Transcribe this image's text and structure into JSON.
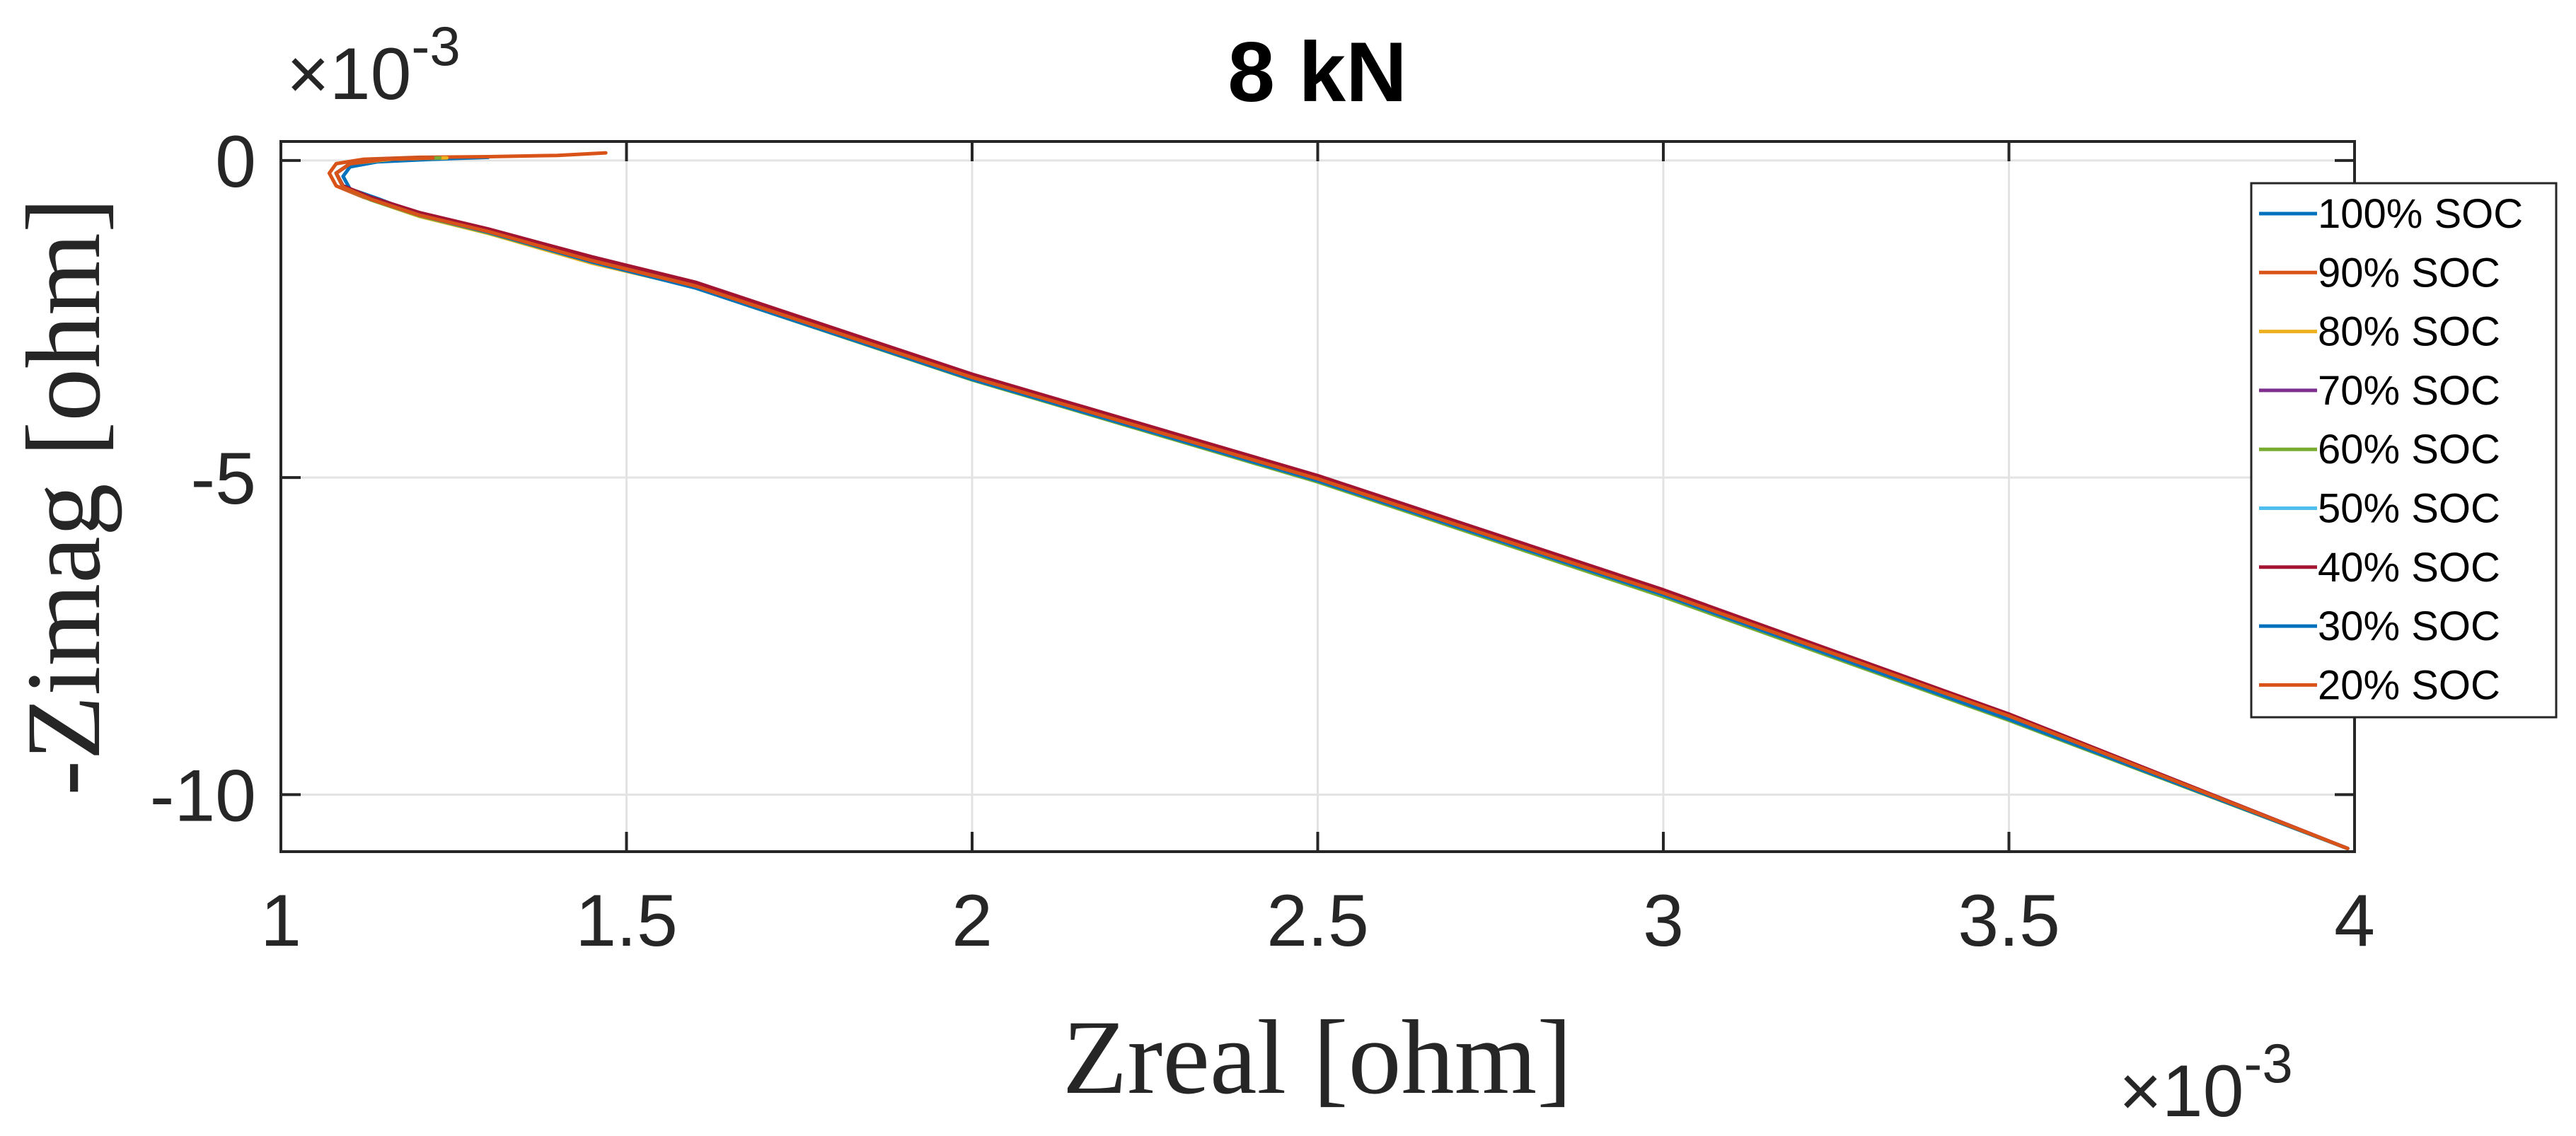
{
  "chart_data": {
    "type": "line",
    "title": "8 kN",
    "xlabel": "Zreal [ohm]",
    "ylabel": "-Zimag [ohm]",
    "x_exponent_label": "×10-3",
    "y_exponent_label": "×10-3",
    "xlim": [
      1,
      4
    ],
    "ylim": [
      -10.9,
      0.3
    ],
    "x_ticks": [
      1,
      1.5,
      2,
      2.5,
      3,
      3.5,
      4
    ],
    "x_tick_labels": [
      "1",
      "1.5",
      "2",
      "2.5",
      "3",
      "3.5",
      "4"
    ],
    "y_ticks": [
      0,
      -5,
      -10
    ],
    "y_tick_labels": [
      "0",
      "-5",
      "-10"
    ],
    "grid": true,
    "legend_position": "top-right",
    "series": [
      {
        "name": "100% SOC",
        "color": "#0072BD",
        "x": [
          1.3,
          1.22,
          1.14,
          1.1,
          1.09,
          1.1,
          1.14,
          1.2,
          1.28,
          1.4,
          1.6,
          2.0,
          2.5,
          3.0,
          3.5,
          3.99
        ],
        "y": [
          0.05,
          0.02,
          -0.02,
          -0.1,
          -0.25,
          -0.45,
          -0.6,
          -0.85,
          -1.05,
          -1.45,
          -2.0,
          -3.45,
          -5.05,
          -6.85,
          -8.8,
          -10.85
        ]
      },
      {
        "name": "90% SOC",
        "color": "#D95319",
        "x": [
          1.47,
          1.4,
          1.3,
          1.2,
          1.12,
          1.08,
          1.07,
          1.08,
          1.12,
          1.18,
          1.26,
          1.4,
          1.6,
          2.0,
          2.5,
          3.0,
          3.5,
          3.99
        ],
        "y": [
          0.12,
          0.08,
          0.06,
          0.05,
          0.02,
          -0.05,
          -0.2,
          -0.4,
          -0.58,
          -0.8,
          -1.02,
          -1.4,
          -1.95,
          -3.4,
          -5.0,
          -6.8,
          -8.75,
          -10.85
        ]
      },
      {
        "name": "80% SOC",
        "color": "#EDB120",
        "x": [
          1.24,
          1.16,
          1.1,
          1.08,
          1.09,
          1.13,
          1.2,
          1.3,
          1.45,
          1.6,
          2.0,
          2.5,
          3.0,
          3.5,
          3.99
        ],
        "y": [
          0.04,
          0.02,
          -0.05,
          -0.2,
          -0.42,
          -0.62,
          -0.88,
          -1.15,
          -1.62,
          -2.0,
          -3.45,
          -5.05,
          -6.85,
          -8.8,
          -10.85
        ]
      },
      {
        "name": "70% SOC",
        "color": "#7E2F8E",
        "x": [
          1.23,
          1.15,
          1.1,
          1.08,
          1.09,
          1.13,
          1.2,
          1.3,
          1.45,
          1.6,
          2.0,
          2.5,
          3.0,
          3.5,
          3.99
        ],
        "y": [
          0.04,
          0.02,
          -0.05,
          -0.2,
          -0.42,
          -0.6,
          -0.85,
          -1.12,
          -1.58,
          -1.98,
          -3.43,
          -5.03,
          -6.83,
          -8.78,
          -10.85
        ]
      },
      {
        "name": "60% SOC",
        "color": "#77AC30",
        "x": [
          1.23,
          1.15,
          1.1,
          1.08,
          1.09,
          1.13,
          1.2,
          1.3,
          1.45,
          1.6,
          2.0,
          2.5,
          3.0,
          3.5,
          3.99
        ],
        "y": [
          0.04,
          0.02,
          -0.05,
          -0.2,
          -0.42,
          -0.62,
          -0.87,
          -1.14,
          -1.6,
          -2.01,
          -3.46,
          -5.07,
          -6.88,
          -8.83,
          -10.85
        ]
      },
      {
        "name": "50% SOC",
        "color": "#4DBEEE",
        "x": [
          1.22,
          1.15,
          1.1,
          1.08,
          1.09,
          1.13,
          1.2,
          1.3,
          1.45,
          1.6,
          2.0,
          2.5,
          3.0,
          3.5,
          3.99
        ],
        "y": [
          0.04,
          0.02,
          -0.05,
          -0.2,
          -0.42,
          -0.61,
          -0.86,
          -1.13,
          -1.59,
          -2.0,
          -3.44,
          -5.04,
          -6.84,
          -8.8,
          -10.85
        ]
      },
      {
        "name": "40% SOC",
        "color": "#A2142F",
        "x": [
          1.22,
          1.15,
          1.1,
          1.08,
          1.09,
          1.13,
          1.2,
          1.3,
          1.45,
          1.6,
          2.0,
          2.5,
          3.0,
          3.5,
          3.99
        ],
        "y": [
          0.04,
          0.02,
          -0.05,
          -0.2,
          -0.4,
          -0.58,
          -0.82,
          -1.08,
          -1.52,
          -1.92,
          -3.37,
          -4.97,
          -6.77,
          -8.73,
          -10.85
        ]
      },
      {
        "name": "30% SOC",
        "color": "#0072BD",
        "x": [
          1.22,
          1.15,
          1.1,
          1.08,
          1.09,
          1.13,
          1.2,
          1.3,
          1.45,
          1.6,
          2.0,
          2.5,
          3.0,
          3.5,
          3.99
        ],
        "y": [
          0.04,
          0.02,
          -0.05,
          -0.2,
          -0.42,
          -0.61,
          -0.86,
          -1.13,
          -1.6,
          -2.01,
          -3.45,
          -5.05,
          -6.85,
          -8.81,
          -10.85
        ]
      },
      {
        "name": "20% SOC",
        "color": "#D95319",
        "x": [
          1.22,
          1.15,
          1.1,
          1.08,
          1.09,
          1.13,
          1.2,
          1.3,
          1.45,
          1.6,
          2.0,
          2.5,
          3.0,
          3.5,
          3.99
        ],
        "y": [
          0.04,
          0.02,
          -0.05,
          -0.2,
          -0.42,
          -0.61,
          -0.86,
          -1.12,
          -1.58,
          -1.98,
          -3.42,
          -5.02,
          -6.82,
          -8.76,
          -10.85
        ]
      }
    ]
  }
}
